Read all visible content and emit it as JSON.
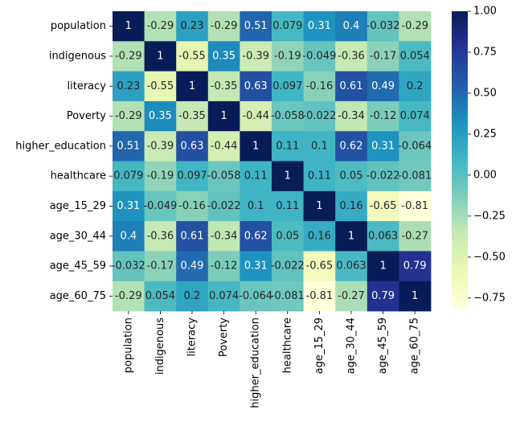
{
  "chart_data": {
    "type": "heatmap",
    "title": "",
    "xlabel": "",
    "ylabel": "",
    "colormap": "YlGnBu",
    "colormap_stops": [
      "#ffffd9",
      "#edf8b1",
      "#c7e9b4",
      "#7fcdbb",
      "#41b6c4",
      "#1d91c0",
      "#225ea8",
      "#253494",
      "#081d58"
    ],
    "vmin": -0.81,
    "vmax": 1,
    "colorbar_ticks": [
      "1.00",
      "0.75",
      "0.50",
      "0.25",
      "0.00",
      "−0.25",
      "−0.50",
      "−0.75"
    ],
    "colorbar_tick_values": [
      1.0,
      0.75,
      0.5,
      0.25,
      0.0,
      -0.25,
      -0.5,
      -0.75
    ],
    "rows": [
      "population",
      "indigenous",
      "literacy",
      "Poverty",
      "higher_education",
      "healthcare",
      "age_15_29",
      "age_30_44",
      "age_45_59",
      "age_60_75"
    ],
    "columns": [
      "population",
      "indigenous",
      "literacy",
      "Poverty",
      "higher_education",
      "healthcare",
      "age_15_29",
      "age_30_44",
      "age_45_59",
      "age_60_75"
    ],
    "values": [
      [
        1,
        -0.29,
        0.23,
        -0.29,
        0.51,
        0.079,
        0.31,
        0.4,
        -0.032,
        -0.29
      ],
      [
        -0.29,
        1,
        -0.55,
        0.35,
        -0.39,
        -0.19,
        -0.049,
        -0.36,
        -0.17,
        0.054
      ],
      [
        0.23,
        -0.55,
        1,
        -0.35,
        0.63,
        0.097,
        -0.16,
        0.61,
        0.49,
        0.2
      ],
      [
        -0.29,
        0.35,
        -0.35,
        1,
        -0.44,
        -0.058,
        -0.022,
        -0.34,
        -0.12,
        0.074
      ],
      [
        0.51,
        -0.39,
        0.63,
        -0.44,
        1,
        0.11,
        0.1,
        0.62,
        0.31,
        -0.064
      ],
      [
        0.079,
        -0.19,
        0.097,
        -0.058,
        0.11,
        1,
        0.11,
        0.05,
        -0.022,
        -0.081
      ],
      [
        0.31,
        -0.049,
        -0.16,
        -0.022,
        0.1,
        0.11,
        1,
        0.16,
        -0.65,
        -0.81
      ],
      [
        0.4,
        -0.36,
        0.61,
        -0.34,
        0.62,
        0.05,
        0.16,
        1,
        0.063,
        -0.27
      ],
      [
        -0.032,
        -0.17,
        0.49,
        -0.12,
        0.31,
        -0.022,
        -0.65,
        0.063,
        1,
        0.79
      ],
      [
        -0.29,
        0.054,
        0.2,
        0.074,
        -0.064,
        -0.081,
        -0.81,
        -0.27,
        0.79,
        1
      ]
    ],
    "annotations": [
      [
        "1",
        "-0.29",
        "0.23",
        "-0.29",
        "0.51",
        "0.079",
        "0.31",
        "0.4",
        "-0.032",
        "-0.29"
      ],
      [
        "-0.29",
        "1",
        "-0.55",
        "0.35",
        "-0.39",
        "-0.19",
        "-0.049",
        "-0.36",
        "-0.17",
        "0.054"
      ],
      [
        "0.23",
        "-0.55",
        "1",
        "-0.35",
        "0.63",
        "0.097",
        "-0.16",
        "0.61",
        "0.49",
        "0.2"
      ],
      [
        "-0.29",
        "0.35",
        "-0.35",
        "1",
        "-0.44",
        "-0.058",
        "-0.022",
        "-0.34",
        "-0.12",
        "0.074"
      ],
      [
        "0.51",
        "-0.39",
        "0.63",
        "-0.44",
        "1",
        "0.11",
        "0.1",
        "0.62",
        "0.31",
        "-0.064"
      ],
      [
        "0.079",
        "-0.19",
        "0.097",
        "-0.058",
        "0.11",
        "1",
        "0.11",
        "0.05",
        "-0.022",
        "-0.081"
      ],
      [
        "0.31",
        "-0.049",
        "-0.16",
        "-0.022",
        "0.1",
        "0.11",
        "1",
        "0.16",
        "-0.65",
        "-0.81"
      ],
      [
        "0.4",
        "-0.36",
        "0.61",
        "-0.34",
        "0.62",
        "0.05",
        "0.16",
        "1",
        "0.063",
        "-0.27"
      ],
      [
        "-0.032",
        "-0.17",
        "0.49",
        "-0.12",
        "0.31",
        "-0.022",
        "-0.65",
        "0.063",
        "1",
        "0.79"
      ],
      [
        "-0.29",
        "0.054",
        "0.2",
        "0.074",
        "-0.064",
        "-0.081",
        "-0.81",
        "-0.27",
        "0.79",
        "1"
      ]
    ],
    "annotation_dark_text": "#262626",
    "annotation_light_text": "#ffffff",
    "legend": "colorbar-right"
  }
}
